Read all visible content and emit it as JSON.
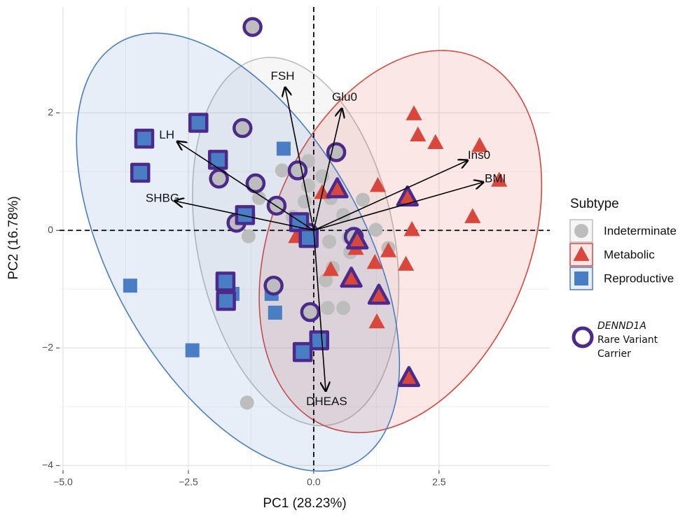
{
  "chart_data": {
    "type": "biplot",
    "x_label": "PC1 (28.23%)",
    "y_label": "PC2 (16.78%)",
    "xlim": [
      -5.07,
      4.71
    ],
    "ylim": [
      -4.08,
      3.8
    ],
    "xticks": [
      {
        "value": -5,
        "label": "−5.0"
      },
      {
        "value": -2.5,
        "label": "−2.5"
      },
      {
        "value": 0,
        "label": "0.0"
      },
      2.5
    ],
    "yticks": [
      {
        "value": -4,
        "label": "−4"
      },
      {
        "value": -2,
        "label": "−2"
      },
      0,
      2
    ],
    "grid": true,
    "legend_title": "Subtype",
    "carrier_label": [
      "DENND1A",
      "Rare Variant",
      "Carrier"
    ],
    "carrier_color": "#4b2a8c",
    "series": [
      {
        "name": "Indeterminate",
        "color": "#bdbdbd",
        "marker": "circle",
        "x": [
          -0.11,
          -0.63,
          0.17,
          -0.18,
          0.34,
          0.59,
          0.98,
          1.24,
          1.49,
          0.73,
          0.7,
          0.31,
          0.24,
          0.59,
          0.28,
          -1.3,
          -1.09,
          -1.3,
          -1.33,
          -0.42,
          0.38,
          -0.11
        ],
        "y": [
          1.18,
          1.02,
          0.92,
          0.49,
          0.55,
          0.26,
          0.52,
          0.01,
          -0.3,
          -0.37,
          -0.12,
          -0.19,
          -0.85,
          -1.32,
          -1.32,
          -0.1,
          0.55,
          0.25,
          -2.93,
          0.23,
          -0.64,
          0.76
        ],
        "carrier": {
          "x": [
            -1.22,
            -1.42,
            0.45,
            -0.32,
            -1.89,
            -1.16,
            -0.74,
            -1.54,
            -0.1,
            0.8,
            -0.8,
            -0.07
          ],
          "y": [
            3.46,
            1.74,
            1.33,
            1.02,
            0.88,
            0.8,
            0.42,
            0.13,
            -0.04,
            -0.11,
            -0.94,
            -1.39
          ]
        },
        "ellipse": {
          "cx": -0.36,
          "cy": -0.19,
          "rx": 3.2,
          "ry": 1.95,
          "angle": -75
        }
      },
      {
        "name": "Metabolic",
        "color": "#d9463b",
        "marker": "triangle",
        "x": [
          2.0,
          2.08,
          2.43,
          3.31,
          3.7,
          3.17,
          1.28,
          1.96,
          0.17,
          1.49,
          1.84,
          1.22,
          0.34,
          1.26,
          -0.35,
          0.84
        ],
        "y": [
          1.98,
          1.62,
          1.49,
          1.44,
          0.85,
          0.23,
          0.76,
          0.01,
          0.64,
          -0.35,
          -0.58,
          -0.55,
          -0.67,
          -1.56,
          -0.11,
          -0.31
        ],
        "carrier": {
          "x": [
            0.47,
            1.87,
            0.87,
            0.75,
            1.3,
            1.9
          ],
          "y": [
            0.7,
            0.56,
            -0.17,
            -0.82,
            -1.11,
            -2.51
          ]
        },
        "ellipse": {
          "cx": 1.73,
          "cy": -0.19,
          "rx": 3.5,
          "ry": 2.5,
          "angle": 58
        }
      },
      {
        "name": "Reproductive",
        "color": "#4a7ec4",
        "marker": "square",
        "x": [
          -0.6,
          -3.66,
          -2.42,
          -0.77,
          -0.84,
          -1.62
        ],
        "y": [
          1.39,
          -0.94,
          -2.04,
          -1.4,
          -1.08,
          -1.08
        ],
        "carrier": {
          "x": [
            -2.3,
            -3.38,
            -3.46,
            -1.91,
            -1.37,
            -0.29,
            -0.1,
            -1.76,
            -1.75,
            0.11,
            -0.22
          ],
          "y": [
            1.83,
            1.56,
            0.98,
            1.2,
            0.26,
            0.14,
            -0.13,
            -0.87,
            -1.2,
            -1.87,
            -2.07
          ]
        },
        "ellipse": {
          "cx": -1.51,
          "cy": -0.37,
          "rx": 4.3,
          "ry": 2.4,
          "angle": -53
        }
      }
    ],
    "loadings": [
      {
        "name": "FSH",
        "x": -0.57,
        "y": 2.43
      },
      {
        "name": "Glu0",
        "x": 0.56,
        "y": 2.07
      },
      {
        "name": "LH",
        "x": -2.72,
        "y": 1.51
      },
      {
        "name": "SHBG",
        "x": -2.77,
        "y": 0.5
      },
      {
        "name": "Ins0",
        "x": 3.07,
        "y": 1.19
      },
      {
        "name": "BMI",
        "x": 3.38,
        "y": 0.82
      },
      {
        "name": "DHEAS",
        "x": 0.24,
        "y": -2.73
      }
    ]
  }
}
